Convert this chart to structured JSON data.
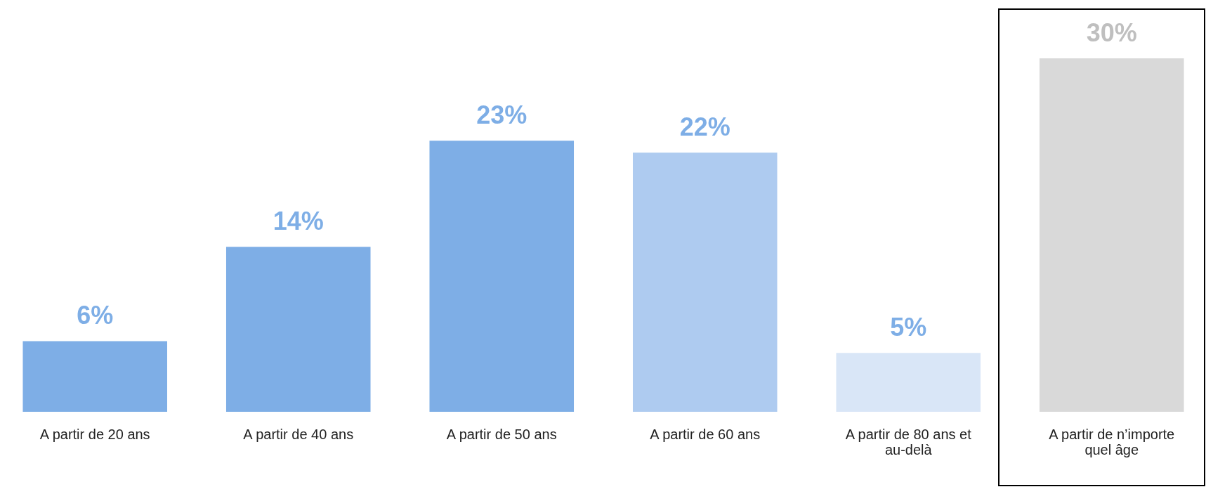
{
  "chart_data": {
    "type": "bar",
    "categories": [
      "A partir de 20 ans",
      "A partir de 40 ans",
      "A partir de 50 ans",
      "A partir de 60 ans",
      "A partir de 80 ans et au-delà",
      "A partir de n’importe quel âge"
    ],
    "values": [
      6,
      14,
      23,
      22,
      5,
      30
    ],
    "colors": [
      "#7eaee6",
      "#7eaee6",
      "#7eaee6",
      "#aecbf0",
      "#d9e6f7",
      "#d9d9d9"
    ],
    "value_labels": [
      "6%",
      "14%",
      "23%",
      "22%",
      "5%",
      "30%"
    ]
  }
}
